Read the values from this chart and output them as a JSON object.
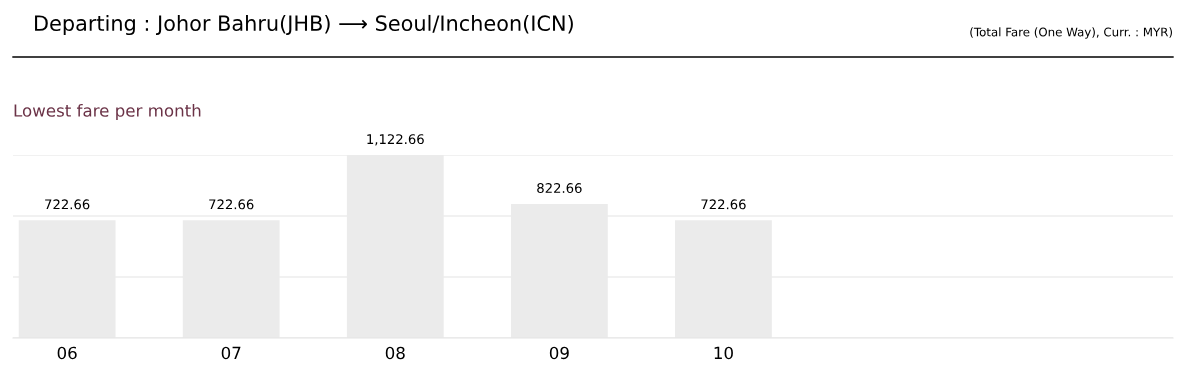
{
  "chart_data": {
    "type": "bar",
    "title": "Departing : Johor Bahru(JHB) ⟶ Seoul/Incheon(ICN)",
    "subtitle": "Lowest fare per month",
    "annotations": [
      "(Total Fare (One Way), Curr. : MYR)"
    ],
    "categories": [
      "06",
      "07",
      "08",
      "09",
      "10"
    ],
    "values": [
      722.66,
      722.66,
      1122.66,
      822.66,
      722.66
    ],
    "value_labels": [
      "722.66",
      "722.66",
      "1,122.66",
      "822.66",
      "722.66"
    ],
    "color": "#ebebeb",
    "ylim": [
      0,
      1122.66
    ],
    "yticks": [
      {
        "value": 0,
        "label": null
      },
      {
        "value": 374.22,
        "label": null
      },
      {
        "value": 748.44,
        "label": null
      },
      {
        "value": 1122.66,
        "label": null
      }
    ],
    "tick_labels": "x",
    "grid": "y",
    "legend": false
  }
}
